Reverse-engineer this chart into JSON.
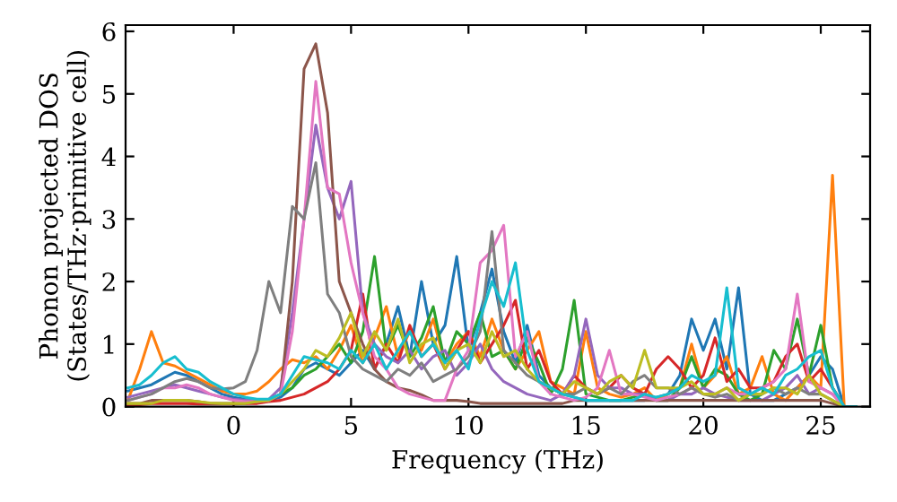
{
  "chart_data": {
    "type": "line",
    "xlabel": "Frequency (THz)",
    "ylabel": "Phonon projected DOS\n(States/THz·primitive cell)",
    "xlim": [
      -4.6,
      27.1
    ],
    "ylim": [
      0,
      6.1
    ],
    "xticks": [
      0,
      5,
      10,
      15,
      20,
      25
    ],
    "yticks": [
      0,
      1,
      2,
      3,
      4,
      5,
      6
    ],
    "grid": false,
    "marker": "none",
    "line_style": "solid",
    "x": [
      -4.5,
      -4,
      -3.5,
      -3,
      -2.5,
      -2,
      -1.5,
      -1,
      -0.5,
      0,
      0.5,
      1,
      1.5,
      2,
      2.5,
      3,
      3.5,
      4,
      4.5,
      5,
      5.5,
      6,
      6.5,
      7,
      7.5,
      8,
      8.5,
      9,
      9.5,
      10,
      10.5,
      11,
      11.5,
      12,
      12.5,
      13,
      13.5,
      14,
      14.5,
      15,
      15.5,
      16,
      16.5,
      17,
      17.5,
      18,
      18.5,
      19,
      19.5,
      20,
      20.5,
      21,
      21.5,
      22,
      22.5,
      23,
      23.5,
      24,
      24.5,
      25,
      25.5,
      26,
      26.5
    ],
    "series": [
      {
        "color": "#1f77b4",
        "values": [
          0.25,
          0.3,
          0.35,
          0.45,
          0.55,
          0.5,
          0.4,
          0.3,
          0.2,
          0.15,
          0.12,
          0.1,
          0.1,
          0.15,
          0.3,
          0.6,
          0.7,
          0.6,
          0.5,
          0.7,
          0.9,
          0.6,
          1.0,
          1.6,
          0.8,
          2.0,
          1.0,
          1.3,
          2.4,
          0.9,
          1.5,
          2.2,
          1.2,
          0.7,
          1.3,
          0.5,
          0.3,
          0.2,
          0.15,
          0.1,
          0.1,
          0.1,
          0.1,
          0.1,
          0.1,
          0.15,
          0.2,
          0.5,
          1.4,
          0.9,
          1.4,
          0.6,
          1.9,
          0.2,
          0.1,
          0.1,
          0.2,
          0.3,
          0.5,
          0.8,
          0.6,
          0,
          0
        ]
      },
      {
        "color": "#ff7f0e",
        "values": [
          0.1,
          0.6,
          1.2,
          0.7,
          0.65,
          0.55,
          0.45,
          0.35,
          0.25,
          0.2,
          0.2,
          0.25,
          0.4,
          0.6,
          0.75,
          0.7,
          0.8,
          0.6,
          0.9,
          1.3,
          0.7,
          1.1,
          1.6,
          0.8,
          1.2,
          0.9,
          1.4,
          0.7,
          1.0,
          1.2,
          0.8,
          1.4,
          0.9,
          0.6,
          0.9,
          1.2,
          0.4,
          0.3,
          0.2,
          1.2,
          0.3,
          0.2,
          0.15,
          0.2,
          0.3,
          0.1,
          0.2,
          0.3,
          1.0,
          0.3,
          0.5,
          0.8,
          0.2,
          0.3,
          0.8,
          0.2,
          0.1,
          0.3,
          0.5,
          0.3,
          3.7,
          0,
          0
        ]
      },
      {
        "color": "#2ca02c",
        "values": [
          null,
          null,
          null,
          null,
          null,
          null,
          null,
          null,
          null,
          null,
          null,
          0.08,
          0.1,
          0.2,
          0.3,
          0.5,
          0.6,
          0.8,
          1.0,
          0.7,
          1.2,
          2.4,
          0.9,
          1.3,
          0.8,
          1.1,
          1.6,
          0.7,
          1.2,
          1.0,
          1.5,
          0.8,
          0.9,
          0.6,
          1.1,
          0.7,
          0.2,
          0.6,
          1.7,
          0.2,
          0.15,
          0.1,
          0.1,
          0.15,
          0.2,
          0.1,
          0.1,
          0.3,
          0.8,
          0.3,
          0.6,
          0.5,
          0.2,
          0.1,
          0.2,
          0.9,
          0.6,
          1.4,
          0.5,
          1.3,
          0.3,
          0,
          0
        ]
      },
      {
        "color": "#d62728",
        "values": [
          0.02,
          0.03,
          0.05,
          0.05,
          0.05,
          0.05,
          0.04,
          0.04,
          0.04,
          0.04,
          0.05,
          0.05,
          0.08,
          0.1,
          0.15,
          0.2,
          0.3,
          0.4,
          0.6,
          0.9,
          1.8,
          0.6,
          1.0,
          0.7,
          1.3,
          0.8,
          1.0,
          0.6,
          0.9,
          1.2,
          0.7,
          1.0,
          1.3,
          1.7,
          0.6,
          0.9,
          0.4,
          0.2,
          0.5,
          0.3,
          0.2,
          0.3,
          0.5,
          0.3,
          0.2,
          0.6,
          0.8,
          0.6,
          0.3,
          0.5,
          1.1,
          0.4,
          0.6,
          0.3,
          0.3,
          0.4,
          0.8,
          1.0,
          0.4,
          0.6,
          0.3,
          0,
          0
        ]
      },
      {
        "color": "#9467bd",
        "values": [
          0.15,
          0.2,
          0.25,
          0.3,
          0.35,
          0.3,
          0.25,
          0.2,
          0.15,
          0.12,
          0.1,
          0.1,
          0.12,
          0.3,
          1.5,
          3.0,
          4.5,
          3.5,
          3.0,
          3.6,
          1.5,
          1.0,
          0.8,
          0.7,
          0.9,
          0.6,
          0.8,
          0.9,
          0.5,
          0.7,
          1.0,
          0.6,
          0.4,
          0.3,
          0.2,
          0.15,
          0.1,
          0.2,
          0.5,
          1.4,
          0.5,
          0.3,
          0.3,
          0.2,
          0.2,
          0.1,
          0.1,
          0.2,
          0.2,
          0.3,
          0.2,
          0.15,
          0.1,
          0.1,
          0.1,
          0.2,
          0.3,
          0.5,
          0.2,
          0.3,
          0.2,
          0,
          0
        ]
      },
      {
        "color": "#8c564b",
        "values": [
          0.05,
          0.05,
          0.1,
          0.1,
          0.1,
          0.1,
          0.08,
          0.05,
          0.05,
          0.05,
          0.05,
          0.08,
          0.1,
          0.2,
          2.0,
          5.4,
          5.8,
          4.7,
          2.0,
          1.5,
          1.0,
          0.6,
          0.4,
          0.3,
          0.26,
          0.19,
          0.1,
          0.1,
          0.1,
          0.08,
          0.05,
          0.05,
          0.05,
          0.05,
          0.05,
          0.05,
          0.05,
          0.05,
          0.1,
          0.1,
          0.1,
          0.1,
          0.1,
          0.1,
          0.1,
          0.1,
          0.1,
          0.1,
          0.1,
          0.1,
          0.1,
          0.1,
          0.1,
          0.1,
          0.1,
          0.1,
          0.1,
          0.1,
          0.1,
          0.1,
          0.05,
          0,
          0
        ]
      },
      {
        "color": "#e377c2",
        "values": [
          0.1,
          0.15,
          0.2,
          0.3,
          0.3,
          0.35,
          0.3,
          0.2,
          0.15,
          0.1,
          0.08,
          0.08,
          0.1,
          0.2,
          1.2,
          3.0,
          5.2,
          3.5,
          3.4,
          2.3,
          1.5,
          0.8,
          0.6,
          0.3,
          0.2,
          0.15,
          0.1,
          0.1,
          0.6,
          0.9,
          2.3,
          2.5,
          2.9,
          0.8,
          1.2,
          0.4,
          0.2,
          0.15,
          0.1,
          0.15,
          0.3,
          0.9,
          0.2,
          0.2,
          0.15,
          0.1,
          0.15,
          0.2,
          0.3,
          0.2,
          0.2,
          0.3,
          0.2,
          0.2,
          0.3,
          0.4,
          0.6,
          1.8,
          0.4,
          0.3,
          0.2,
          0,
          0
        ]
      },
      {
        "color": "#7f7f7f",
        "values": [
          0.1,
          0.15,
          0.2,
          0.3,
          0.4,
          0.45,
          0.4,
          0.3,
          0.28,
          0.3,
          0.4,
          0.9,
          2.0,
          1.5,
          3.2,
          3.0,
          3.9,
          1.8,
          1.5,
          0.8,
          0.6,
          0.5,
          0.4,
          0.6,
          0.5,
          0.7,
          0.4,
          0.5,
          0.6,
          0.8,
          1.2,
          2.8,
          0.9,
          0.7,
          0.5,
          0.4,
          0.3,
          0.2,
          0.2,
          0.3,
          0.2,
          0.3,
          0.2,
          0.4,
          0.5,
          0.3,
          0.3,
          0.2,
          0.3,
          0.2,
          0.15,
          0.2,
          0.1,
          0.2,
          0.2,
          0.3,
          0.2,
          0.3,
          0.2,
          0.2,
          0.1,
          0,
          0
        ]
      },
      {
        "color": "#bcbd22",
        "values": [
          0.05,
          0.05,
          0.05,
          0.1,
          0.1,
          0.1,
          0.08,
          0.06,
          0.05,
          0.05,
          0.05,
          0.08,
          0.1,
          0.2,
          0.4,
          0.6,
          0.9,
          0.8,
          1.1,
          1.5,
          0.8,
          1.2,
          0.9,
          1.4,
          0.7,
          1.0,
          1.1,
          0.6,
          0.9,
          1.0,
          0.7,
          1.2,
          0.8,
          0.9,
          0.6,
          0.4,
          0.3,
          0.2,
          0.4,
          0.3,
          0.2,
          0.4,
          0.5,
          0.3,
          0.9,
          0.3,
          0.3,
          0.3,
          0.4,
          0.2,
          0.2,
          0.3,
          0.1,
          0.2,
          0.2,
          0.3,
          0.3,
          0.2,
          0.5,
          0.2,
          0.1,
          0,
          0
        ]
      },
      {
        "color": "#17becf",
        "values": [
          0.3,
          0.35,
          0.5,
          0.7,
          0.8,
          0.6,
          0.55,
          0.4,
          0.3,
          0.2,
          0.15,
          0.12,
          0.12,
          0.2,
          0.5,
          0.8,
          0.75,
          0.7,
          0.6,
          0.9,
          0.7,
          1.0,
          0.6,
          0.9,
          1.2,
          0.8,
          1.0,
          0.7,
          0.9,
          0.6,
          1.4,
          2.0,
          1.6,
          2.3,
          0.9,
          0.4,
          0.3,
          0.2,
          0.15,
          0.1,
          0.1,
          0.1,
          0.1,
          0.1,
          0.2,
          0.15,
          0.2,
          0.3,
          0.5,
          0.4,
          0.5,
          1.9,
          0.3,
          0.2,
          0.3,
          0.2,
          0.5,
          0.6,
          0.8,
          0.9,
          0.3,
          0,
          0
        ]
      }
    ]
  }
}
